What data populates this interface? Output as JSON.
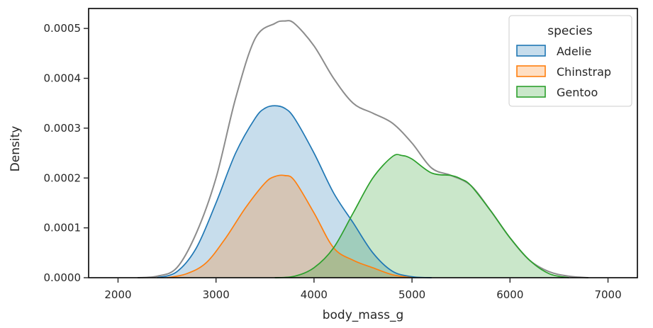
{
  "chart_data": {
    "type": "area",
    "title": "",
    "xlabel": "body_mass_g",
    "ylabel": "Density",
    "xlim": [
      1700,
      7300
    ],
    "ylim": [
      0,
      0.00054
    ],
    "grid": false,
    "x_ticks": [
      2000,
      3000,
      4000,
      5000,
      6000,
      7000
    ],
    "x_tick_labels": [
      "2000",
      "3000",
      "4000",
      "5000",
      "6000",
      "7000"
    ],
    "y_ticks": [
      0,
      0.0001,
      0.0002,
      0.0003,
      0.0004,
      0.0005
    ],
    "y_tick_labels": [
      "0.0000",
      "0.0001",
      "0.0002",
      "0.0003",
      "0.0004",
      "0.0005"
    ],
    "legend": {
      "title": "species",
      "placement": "top-right",
      "entries": [
        "Adelie",
        "Chinstrap",
        "Gentoo"
      ]
    },
    "total_curve": {
      "color": "#8c8c8c",
      "x": [
        2200,
        2400,
        2600,
        2800,
        3000,
        3200,
        3400,
        3600,
        3700,
        3800,
        4000,
        4200,
        4400,
        4600,
        4800,
        5000,
        5200,
        5400,
        5600,
        5800,
        6000,
        6200,
        6400,
        6600,
        6800
      ],
      "y": [
        0.0,
        3e-06,
        2e-05,
        9e-05,
        0.0002,
        0.00036,
        0.00048,
        0.00051,
        0.000515,
        0.00051,
        0.000465,
        0.0004,
        0.00035,
        0.00033,
        0.00031,
        0.00027,
        0.00022,
        0.000205,
        0.000185,
        0.000135,
        8e-05,
        3.5e-05,
        1.2e-05,
        3e-06,
        0.0
      ]
    },
    "series": [
      {
        "name": "Adelie",
        "color": "#1f77b4",
        "fill": "#c5d9ec",
        "x": [
          2400,
          2600,
          2800,
          3000,
          3200,
          3400,
          3500,
          3600,
          3700,
          3800,
          4000,
          4200,
          4400,
          4600,
          4800,
          5000,
          5200
        ],
        "y": [
          0.0,
          1.2e-05,
          6e-05,
          0.00015,
          0.00025,
          0.00032,
          0.00034,
          0.000345,
          0.00034,
          0.00032,
          0.00025,
          0.00017,
          0.00011,
          5e-05,
          1.3e-05,
          2e-06,
          0.0
        ]
      },
      {
        "name": "Chinstrap",
        "color": "#ff7f0e",
        "fill": "#c8c0b8",
        "x": [
          2500,
          2700,
          2900,
          3100,
          3300,
          3500,
          3600,
          3700,
          3800,
          4000,
          4200,
          4400,
          4600,
          4800,
          5000
        ],
        "y": [
          0.0,
          8e-06,
          3e-05,
          8e-05,
          0.00014,
          0.00019,
          0.000203,
          0.000205,
          0.000195,
          0.00013,
          6e-05,
          3.5e-05,
          2e-05,
          6e-06,
          0.0
        ]
      },
      {
        "name": "Gentoo",
        "color": "#2ca02c",
        "fill": "#cde8c9",
        "x": [
          3600,
          3800,
          4000,
          4200,
          4400,
          4600,
          4800,
          4900,
          5000,
          5200,
          5400,
          5500,
          5600,
          5800,
          6000,
          6200,
          6400,
          6600
        ],
        "y": [
          0.0,
          3e-06,
          2e-05,
          6e-05,
          0.00013,
          0.0002,
          0.000243,
          0.000245,
          0.000238,
          0.00021,
          0.000205,
          0.000198,
          0.000185,
          0.000135,
          8e-05,
          3.5e-05,
          8e-06,
          0.0
        ]
      }
    ]
  }
}
